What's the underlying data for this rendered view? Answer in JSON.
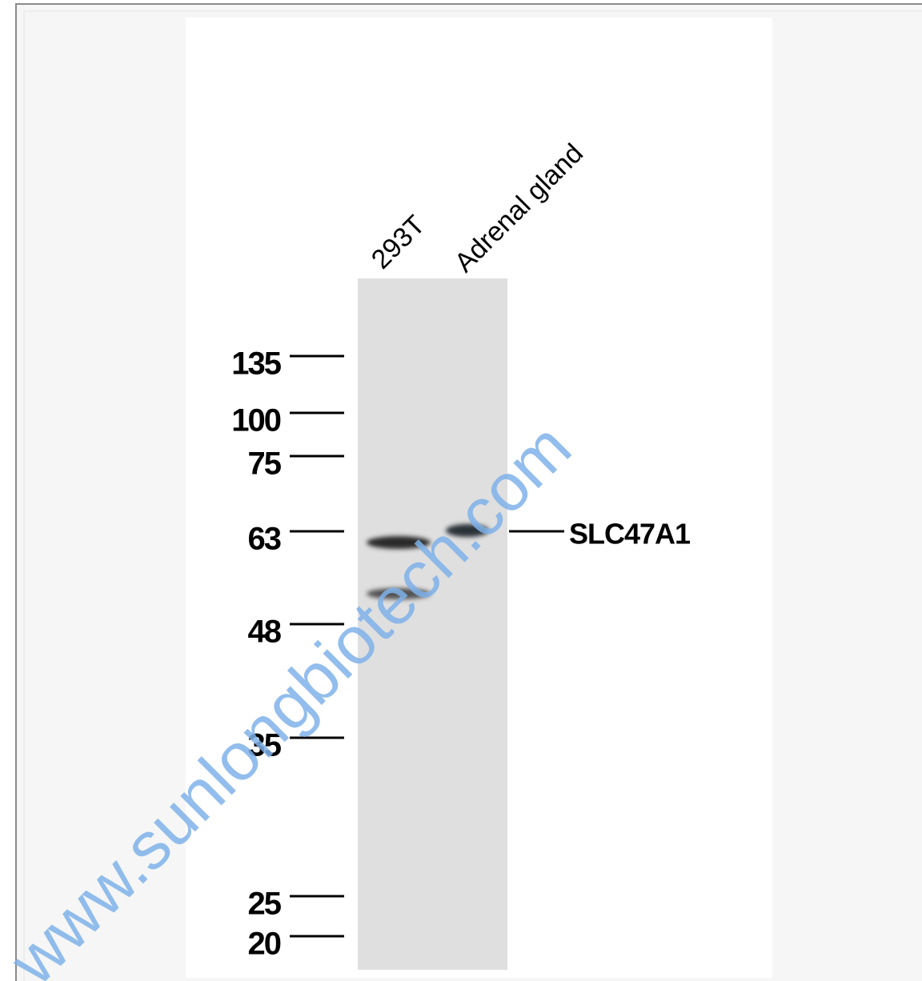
{
  "lanes": [
    "293T",
    "Adrenal gland"
  ],
  "markers": [
    135,
    100,
    75,
    63,
    48,
    35,
    25,
    20
  ],
  "target": "SLC47A1",
  "watermark": "www.sunlongbiotech.com"
}
